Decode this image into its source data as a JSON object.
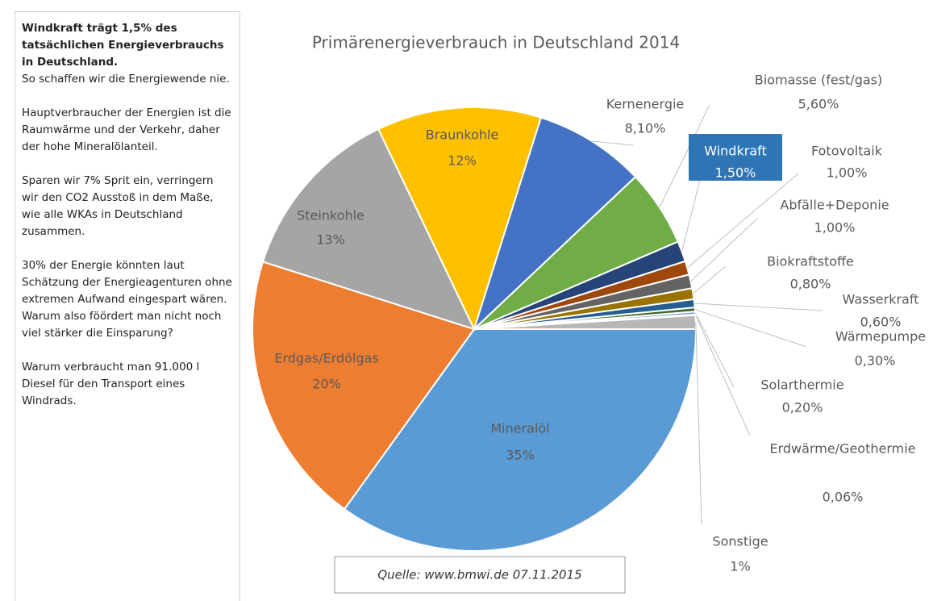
{
  "note": {
    "headline": "Windkraft trägt 1,5% des tatsächlichen Energieverbrauchs in Deutschland.",
    "paragraphs": [
      "So schaffen wir die Energiewende nie.",
      "Hauptverbraucher der Energien ist die Raumwärme und der Verkehr, daher der hohe Mineralölanteil.",
      "Sparen wir 7% Sprit ein, verringern wir den CO2 Ausstoß in dem Maße, wie alle WKAs in Deutschland zusammen.",
      "30% der Energie könnten laut Schätzung der Energieagenturen ohne extremen Aufwand eingespart wären. Warum also föördert man nicht noch viel stärker die Einsparung?",
      "Warum verbraucht man 91.000 l Diesel für den Transport eines Windrads."
    ]
  },
  "chart_data": {
    "type": "pie",
    "title": "Primärenergieverbrauch in Deutschland 2014",
    "source": "Quelle: www.bmwi.de 07.11.2015",
    "categories": [
      "Mineralöl",
      "Erdgas/Erdölgas",
      "Steinkohle",
      "Braunkohle",
      "Kernenergie",
      "Biomasse (fest/gas)",
      "Windkraft",
      "Fotovoltaik",
      "Abfälle+Deponie",
      "Biokraftstoffe",
      "Wasserkraft",
      "Wärmepumpe",
      "Solarthermie",
      "Erdwärme/Geothermie",
      "Sonstige"
    ],
    "values": [
      35,
      20,
      13,
      12,
      8.1,
      5.6,
      1.5,
      1.0,
      1.0,
      0.8,
      0.6,
      0.3,
      0.2,
      0.06,
      1
    ],
    "value_labels": [
      "35%",
      "20%",
      "13%",
      "12%",
      "8,10%",
      "5,60%",
      "1,50%",
      "1,00%",
      "1,00%",
      "0,80%",
      "0,60%",
      "0,30%",
      "0,20%",
      "0,06%",
      "1%"
    ],
    "colors": [
      "#5b9bd5",
      "#ed7d31",
      "#a5a5a5",
      "#ffc000",
      "#4472c4",
      "#70ad47",
      "#264478",
      "#9e480e",
      "#636363",
      "#997300",
      "#255e91",
      "#43682b",
      "#698ed0",
      "#f1975a",
      "#b7b7b7"
    ],
    "highlight": "Windkraft"
  }
}
